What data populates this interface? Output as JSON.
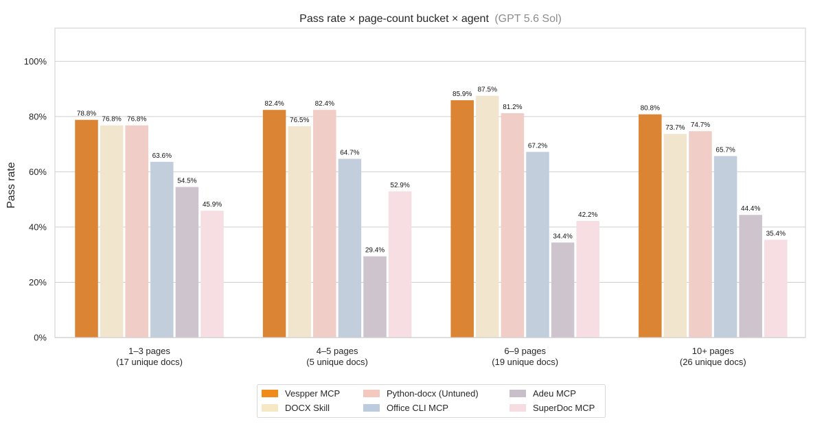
{
  "chart_data": {
    "type": "bar",
    "title": "Pass rate × page-count bucket × agent",
    "subtitle": "(GPT 5.6 Sol)",
    "xlabel": "",
    "ylabel": "Pass rate",
    "ylim": [
      0,
      112
    ],
    "yticks": [
      0,
      20,
      40,
      60,
      80,
      100
    ],
    "ytick_labels": [
      "0%",
      "20%",
      "40%",
      "60%",
      "80%",
      "100%"
    ],
    "grid": "horizontal",
    "legend_placement": "bottom-center",
    "categories": [
      [
        "1–3 pages",
        "(17 unique docs)"
      ],
      [
        "4–5 pages",
        "(5 unique docs)"
      ],
      [
        "6–9 pages",
        "(19 unique docs)"
      ],
      [
        "10+ pages",
        "(26 unique docs)"
      ]
    ],
    "series": [
      {
        "name": "Vespper MCP",
        "color": "#DB8433",
        "legend_color": "#F08A1B",
        "values": [
          78.8,
          82.4,
          85.9,
          80.8
        ],
        "labels": [
          "78.8%",
          "82.4%",
          "85.9%",
          "80.8%"
        ]
      },
      {
        "name": "DOCX Skill",
        "color": "#F1E6CD",
        "legend_color": "#F7E8C4",
        "values": [
          76.8,
          76.5,
          87.5,
          73.7
        ],
        "labels": [
          "76.8%",
          "76.5%",
          "87.5%",
          "73.7%"
        ]
      },
      {
        "name": "Python-docx (Untuned)",
        "color": "#F0CDC6",
        "legend_color": "#F4C8BF",
        "values": [
          76.8,
          82.4,
          81.2,
          74.7
        ],
        "labels": [
          "76.8%",
          "82.4%",
          "81.2%",
          "74.7%"
        ]
      },
      {
        "name": "Office CLI MCP",
        "color": "#C3CEDC",
        "legend_color": "#BCCBDE",
        "values": [
          63.6,
          64.7,
          67.2,
          65.7
        ],
        "labels": [
          "63.6%",
          "64.7%",
          "67.2%",
          "65.7%"
        ]
      },
      {
        "name": "Adeu MCP",
        "color": "#CDC4CD",
        "legend_color": "#C9BFCB",
        "values": [
          54.5,
          29.4,
          34.4,
          44.4
        ],
        "labels": [
          "54.5%",
          "29.4%",
          "34.4%",
          "44.4%"
        ]
      },
      {
        "name": "SuperDoc MCP",
        "color": "#F6DEE2",
        "legend_color": "#F7DCE2",
        "values": [
          45.9,
          52.9,
          42.2,
          35.4
        ],
        "labels": [
          "45.9%",
          "52.9%",
          "42.2%",
          "35.4%"
        ]
      }
    ]
  }
}
